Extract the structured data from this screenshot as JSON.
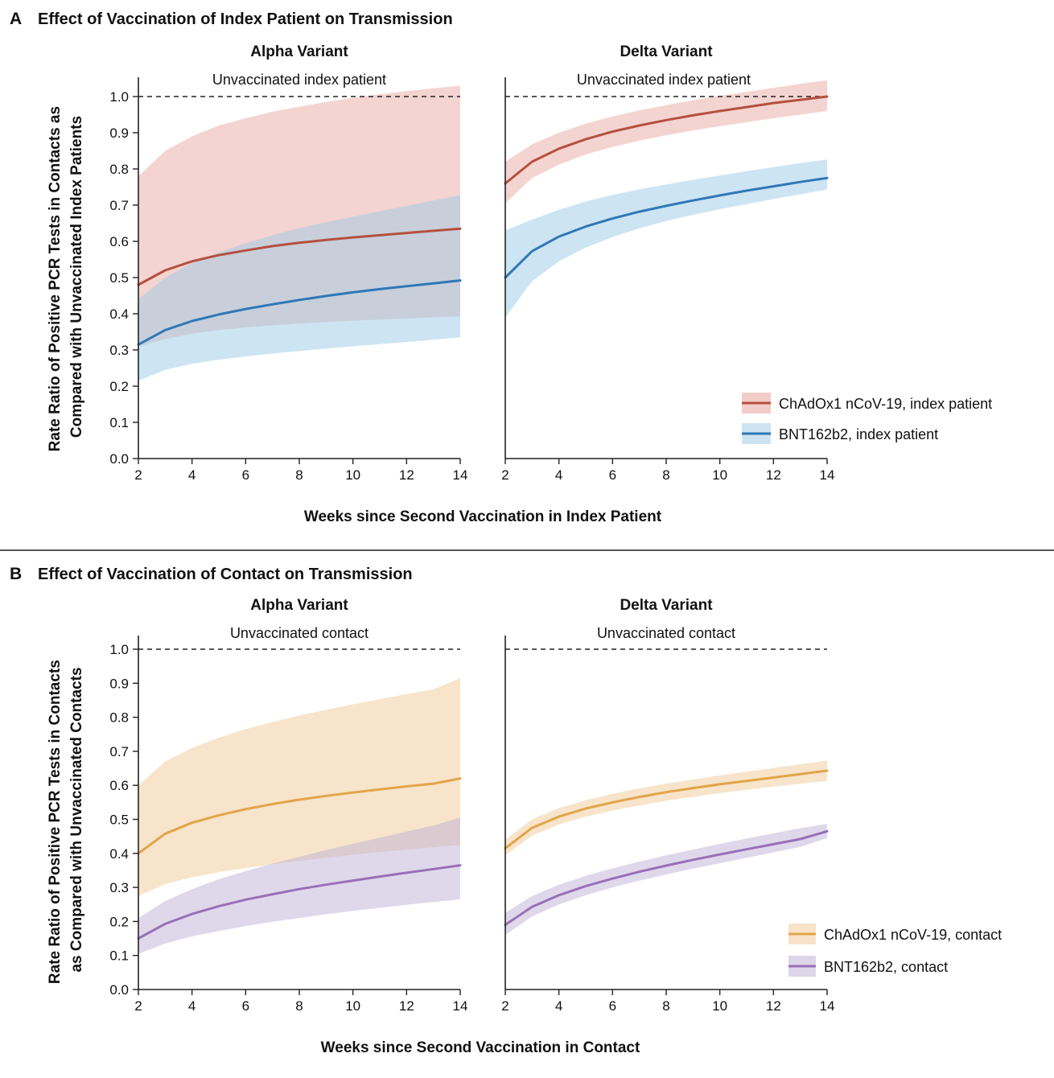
{
  "panels": [
    {
      "letter": "A",
      "title": "Effect of Vaccination of Index Patient on Transmission",
      "ylabel_lines": [
        "Rate Ratio of Positive PCR Tests in Contacts as",
        "Compared with Unvaccinated Index Patients"
      ],
      "xlabel": "Weeks since Second Vaccination in Index Patient",
      "legend": [
        {
          "label": "ChAdOx1 nCoV-19, index patient",
          "line": "#b5503f",
          "band": "#f2cdc9"
        },
        {
          "label": "BNT162b2, index patient",
          "line": "#2f78b8",
          "band": "#cde3f1"
        }
      ]
    },
    {
      "letter": "B",
      "title": "Effect of Vaccination of Contact on Transmission",
      "ylabel_lines": [
        "Rate Ratio of Positive PCR Tests in Contacts",
        "as Compared with Unvaccinated Contacts"
      ],
      "xlabel": "Weeks since Second Vaccination in Contact",
      "legend": [
        {
          "label": "ChAdOx1 nCoV-19, contact",
          "line": "#e3a449",
          "band": "#f8e3c8"
        },
        {
          "label": "BNT162b2, contact",
          "line": "#9970b8",
          "band": "#ddd6e9"
        }
      ]
    }
  ],
  "chart_data": [
    {
      "type": "line",
      "panel": "A",
      "title": "Alpha Variant",
      "reference_label": "Unvaccinated index patient",
      "reference_value": 1.0,
      "xlim": [
        2,
        14
      ],
      "ylim": [
        0,
        1.0
      ],
      "xticks": [
        2,
        4,
        6,
        8,
        10,
        12,
        14
      ],
      "yticks": [
        0.0,
        0.1,
        0.2,
        0.3,
        0.4,
        0.5,
        0.6,
        0.7,
        0.8,
        0.9,
        1.0
      ],
      "x": [
        2,
        3,
        4,
        5,
        6,
        7,
        8,
        9,
        10,
        11,
        12,
        13,
        14
      ],
      "series": [
        {
          "name": "ChAdOx1 nCoV-19, index patient",
          "color": "#b5503f",
          "band_color": "#e9a9a2",
          "values": [
            0.48,
            0.52,
            0.545,
            0.562,
            0.575,
            0.587,
            0.596,
            0.604,
            0.611,
            0.617,
            0.623,
            0.629,
            0.635
          ],
          "lower": [
            0.31,
            0.33,
            0.345,
            0.355,
            0.362,
            0.368,
            0.373,
            0.377,
            0.381,
            0.384,
            0.387,
            0.39,
            0.393
          ],
          "upper": [
            0.78,
            0.85,
            0.89,
            0.92,
            0.94,
            0.958,
            0.972,
            0.985,
            0.996,
            1.006,
            1.015,
            1.023,
            1.03
          ]
        },
        {
          "name": "BNT162b2, index patient",
          "color": "#2f78b8",
          "band_color": "#9cc9e6",
          "values": [
            0.315,
            0.355,
            0.38,
            0.398,
            0.413,
            0.426,
            0.438,
            0.449,
            0.459,
            0.468,
            0.476,
            0.484,
            0.492
          ],
          "lower": [
            0.215,
            0.245,
            0.262,
            0.273,
            0.282,
            0.29,
            0.297,
            0.304,
            0.31,
            0.316,
            0.322,
            0.328,
            0.335
          ],
          "upper": [
            0.44,
            0.5,
            0.54,
            0.57,
            0.595,
            0.617,
            0.636,
            0.653,
            0.668,
            0.683,
            0.698,
            0.713,
            0.728
          ]
        }
      ]
    },
    {
      "type": "line",
      "panel": "A",
      "title": "Delta Variant",
      "reference_label": "Unvaccinated index patient",
      "reference_value": 1.0,
      "xlim": [
        2,
        14
      ],
      "ylim": [
        0,
        1.0
      ],
      "xticks": [
        2,
        4,
        6,
        8,
        10,
        12,
        14
      ],
      "yticks": [
        0.0,
        0.1,
        0.2,
        0.3,
        0.4,
        0.5,
        0.6,
        0.7,
        0.8,
        0.9,
        1.0
      ],
      "x": [
        2,
        3,
        4,
        5,
        6,
        7,
        8,
        9,
        10,
        11,
        12,
        13,
        14
      ],
      "series": [
        {
          "name": "ChAdOx1 nCoV-19, index patient",
          "color": "#b5503f",
          "band_color": "#e9a9a2",
          "values": [
            0.76,
            0.82,
            0.856,
            0.882,
            0.903,
            0.92,
            0.935,
            0.948,
            0.96,
            0.971,
            0.982,
            0.991,
            1.0
          ],
          "lower": [
            0.705,
            0.775,
            0.812,
            0.84,
            0.861,
            0.878,
            0.893,
            0.906,
            0.918,
            0.929,
            0.94,
            0.95,
            0.96
          ],
          "upper": [
            0.82,
            0.868,
            0.9,
            0.925,
            0.945,
            0.962,
            0.976,
            0.99,
            1.002,
            1.013,
            1.024,
            1.035,
            1.045
          ]
        },
        {
          "name": "BNT162b2, index patient",
          "color": "#2f78b8",
          "band_color": "#9cc9e6",
          "values": [
            0.5,
            0.573,
            0.613,
            0.641,
            0.663,
            0.682,
            0.698,
            0.713,
            0.727,
            0.74,
            0.752,
            0.764,
            0.775
          ],
          "lower": [
            0.39,
            0.49,
            0.545,
            0.583,
            0.612,
            0.636,
            0.656,
            0.673,
            0.689,
            0.703,
            0.717,
            0.73,
            0.743
          ],
          "upper": [
            0.63,
            0.66,
            0.687,
            0.71,
            0.728,
            0.744,
            0.757,
            0.77,
            0.782,
            0.794,
            0.805,
            0.816,
            0.826
          ]
        }
      ]
    },
    {
      "type": "line",
      "panel": "B",
      "title": "Alpha Variant",
      "reference_label": "Unvaccinated contact",
      "reference_value": 1.0,
      "xlim": [
        2,
        14
      ],
      "ylim": [
        0,
        1.0
      ],
      "xticks": [
        2,
        4,
        6,
        8,
        10,
        12,
        14
      ],
      "yticks": [
        0.0,
        0.1,
        0.2,
        0.3,
        0.4,
        0.5,
        0.6,
        0.7,
        0.8,
        0.9,
        1.0
      ],
      "x": [
        2,
        3,
        4,
        5,
        6,
        7,
        8,
        9,
        10,
        11,
        12,
        13,
        14
      ],
      "series": [
        {
          "name": "ChAdOx1 nCoV-19, contact",
          "color": "#e3a449",
          "band_color": "#f0c995",
          "values": [
            0.4,
            0.458,
            0.49,
            0.512,
            0.53,
            0.545,
            0.558,
            0.569,
            0.579,
            0.588,
            0.597,
            0.605,
            0.62
          ],
          "lower": [
            0.275,
            0.31,
            0.33,
            0.345,
            0.357,
            0.368,
            0.378,
            0.387,
            0.396,
            0.404,
            0.411,
            0.418,
            0.425
          ],
          "upper": [
            0.6,
            0.67,
            0.71,
            0.74,
            0.765,
            0.786,
            0.805,
            0.822,
            0.838,
            0.853,
            0.868,
            0.882,
            0.915
          ]
        },
        {
          "name": "BNT162b2, contact",
          "color": "#9970b8",
          "band_color": "#bfb1d8",
          "values": [
            0.15,
            0.193,
            0.222,
            0.245,
            0.264,
            0.28,
            0.295,
            0.308,
            0.32,
            0.332,
            0.343,
            0.354,
            0.365
          ],
          "lower": [
            0.105,
            0.135,
            0.156,
            0.172,
            0.186,
            0.199,
            0.21,
            0.221,
            0.231,
            0.24,
            0.249,
            0.257,
            0.265
          ],
          "upper": [
            0.21,
            0.26,
            0.295,
            0.324,
            0.348,
            0.37,
            0.39,
            0.41,
            0.428,
            0.446,
            0.464,
            0.482,
            0.505
          ]
        }
      ]
    },
    {
      "type": "line",
      "panel": "B",
      "title": "Delta Variant",
      "reference_label": "Unvaccinated contact",
      "reference_value": 1.0,
      "xlim": [
        2,
        14
      ],
      "ylim": [
        0,
        1.0
      ],
      "xticks": [
        2,
        4,
        6,
        8,
        10,
        12,
        14
      ],
      "yticks": [
        0.0,
        0.1,
        0.2,
        0.3,
        0.4,
        0.5,
        0.6,
        0.7,
        0.8,
        0.9,
        1.0
      ],
      "x": [
        2,
        3,
        4,
        5,
        6,
        7,
        8,
        9,
        10,
        11,
        12,
        13,
        14
      ],
      "series": [
        {
          "name": "ChAdOx1 nCoV-19, contact",
          "color": "#e3a449",
          "band_color": "#f0c995",
          "values": [
            0.415,
            0.475,
            0.508,
            0.532,
            0.55,
            0.566,
            0.58,
            0.592,
            0.603,
            0.613,
            0.623,
            0.633,
            0.643
          ],
          "lower": [
            0.395,
            0.452,
            0.485,
            0.508,
            0.526,
            0.541,
            0.555,
            0.566,
            0.577,
            0.587,
            0.596,
            0.605,
            0.613
          ],
          "upper": [
            0.44,
            0.5,
            0.533,
            0.556,
            0.575,
            0.591,
            0.605,
            0.617,
            0.629,
            0.64,
            0.651,
            0.662,
            0.673
          ]
        },
        {
          "name": "BNT162b2, contact",
          "color": "#9970b8",
          "band_color": "#bfb1d8",
          "values": [
            0.19,
            0.243,
            0.277,
            0.304,
            0.326,
            0.346,
            0.364,
            0.381,
            0.397,
            0.412,
            0.427,
            0.442,
            0.465
          ],
          "lower": [
            0.16,
            0.215,
            0.25,
            0.277,
            0.3,
            0.32,
            0.338,
            0.355,
            0.371,
            0.387,
            0.403,
            0.419,
            0.445
          ],
          "upper": [
            0.225,
            0.275,
            0.308,
            0.334,
            0.356,
            0.376,
            0.394,
            0.411,
            0.428,
            0.444,
            0.459,
            0.474,
            0.487
          ]
        }
      ]
    }
  ]
}
